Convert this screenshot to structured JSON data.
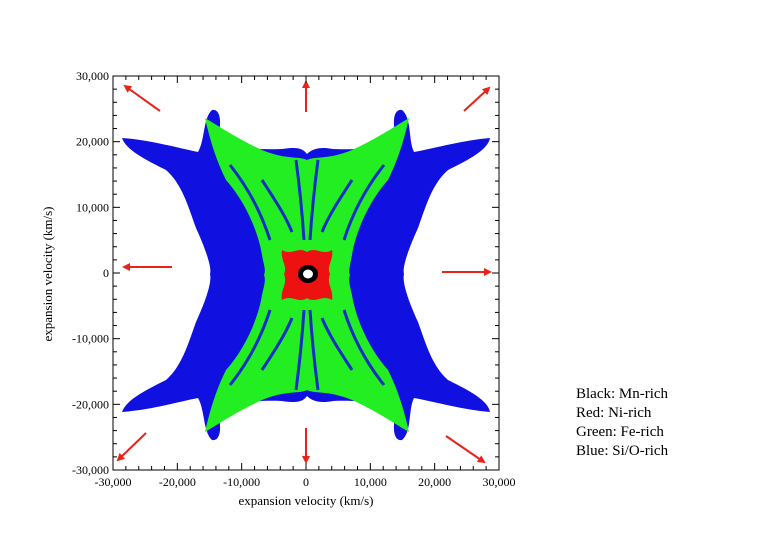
{
  "chart_data": {
    "type": "scatter",
    "xlabel": "expansion velocity (km/s)",
    "ylabel": "expansion velocity (km/s)",
    "xlim": [
      -30000,
      30000
    ],
    "ylim": [
      -30000,
      30000
    ],
    "x_ticks": [
      -30000,
      -20000,
      -10000,
      0,
      10000,
      20000,
      30000
    ],
    "y_ticks": [
      -30000,
      -20000,
      -10000,
      0,
      10000,
      20000,
      30000
    ],
    "x_tick_labels": [
      "-30,000",
      "-20,000",
      "-10,000",
      "0",
      "10,000",
      "20,000",
      "30,000"
    ],
    "y_tick_labels": [
      "-30,000",
      "-20,000",
      "-10,000",
      "0",
      "10,000",
      "20,000",
      "30,000"
    ],
    "grid": false,
    "legend_position": "right-bottom (outside plot)",
    "legend": [
      {
        "label": "Black: Mn-rich",
        "color": "#000000"
      },
      {
        "label": "Red: Ni-rich",
        "color": "#ff0000"
      },
      {
        "label": "Green: Fe-rich",
        "color": "#00ff00"
      },
      {
        "label": "Blue: Si/O-rich",
        "color": "#0000ff"
      }
    ],
    "arrow_color": "#e8231a"
  }
}
